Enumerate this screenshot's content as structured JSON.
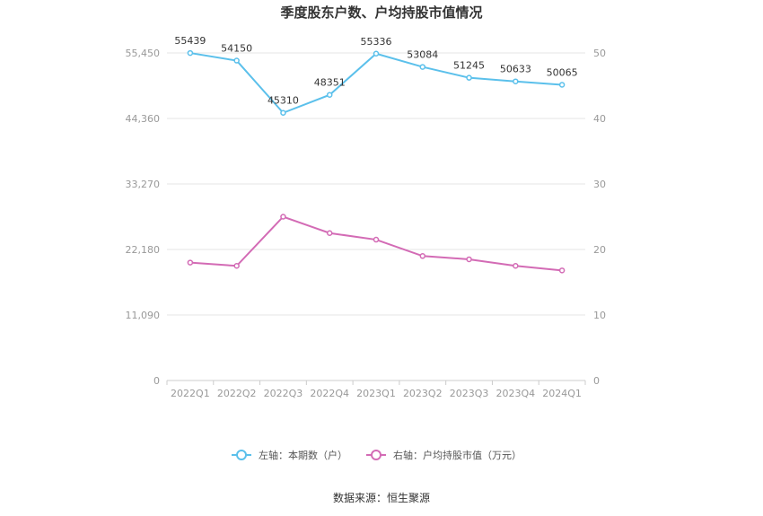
{
  "title": "季度股东户数、户均持股市值情况",
  "source": "数据来源：恒生聚源",
  "chart_data": {
    "type": "line",
    "categories": [
      "2022Q1",
      "2022Q2",
      "2022Q3",
      "2022Q4",
      "2023Q1",
      "2023Q2",
      "2023Q3",
      "2023Q4",
      "2024Q1"
    ],
    "left_axis": {
      "ticks": [
        "0",
        "11,090",
        "22,180",
        "33,270",
        "44,360",
        "55,450"
      ],
      "ylim": [
        0,
        55450
      ]
    },
    "right_axis": {
      "ticks": [
        "0",
        "10",
        "20",
        "30",
        "40",
        "50"
      ],
      "ylim": [
        0,
        50
      ]
    },
    "series": [
      {
        "name": "左轴：本期数（户）",
        "axis": "left",
        "color": "#5bc0eb",
        "values": [
          55439,
          54150,
          45310,
          48351,
          55336,
          53084,
          51245,
          50633,
          50065
        ],
        "labels": [
          "55439",
          "54150",
          "45310",
          "48351",
          "55336",
          "53084",
          "51245",
          "50633",
          "50065"
        ]
      },
      {
        "name": "右轴：户均持股市值（万元）",
        "axis": "right",
        "color": "#d36bb5",
        "values": [
          18.0,
          17.5,
          25.0,
          22.5,
          21.5,
          19.0,
          18.5,
          17.5,
          16.8
        ]
      }
    ],
    "grid": true,
    "legend_position": "bottom-center"
  }
}
